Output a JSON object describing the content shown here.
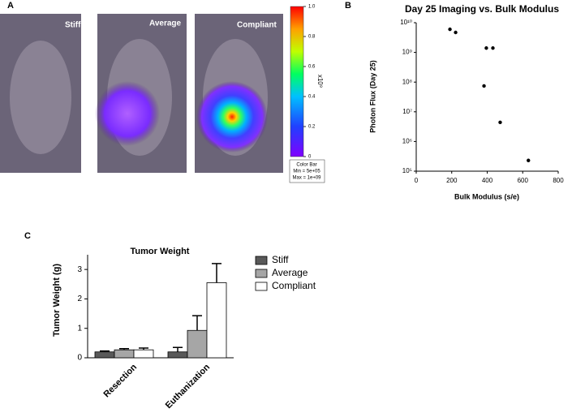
{
  "panel_labels": [
    "A",
    "B",
    "C"
  ],
  "images": {
    "labels": [
      "Stiff",
      "Average",
      "Compliant"
    ],
    "colorbar": {
      "ticks": [
        0,
        0.2,
        0.4,
        0.6,
        0.8,
        {
          "value": 1,
          "label": "1.0"
        }
      ],
      "unit_label": "x10⁹",
      "caption": [
        "Color Bar",
        "Min = 5e+05",
        "Max = 1e+09"
      ]
    }
  },
  "chart_data": [
    {
      "type": "scatter",
      "title": "Day 25 Imaging vs. Bulk Modulus",
      "x_label": "Bulk Modulus (s/e)",
      "y_label": "Photon Flux (Day 25)",
      "x": [
        190,
        222,
        382,
        395,
        432,
        473,
        632
      ],
      "values": [
        6000000000,
        4700000000,
        74000000,
        1400000000,
        1400000000,
        4400000,
        230000
      ],
      "color": "#000000",
      "xlim": [
        0,
        800
      ],
      "xticks": [
        0,
        200,
        400,
        600,
        800
      ],
      "yscale": "log",
      "ylim": [
        100000,
        10000000000
      ],
      "yticks": [
        {
          "value": 100000,
          "label": "10⁵"
        },
        {
          "value": 1000000,
          "label": "10⁶"
        },
        {
          "value": 10000000,
          "label": "10⁷"
        },
        {
          "value": 100000000,
          "label": "10⁸"
        },
        {
          "value": 1000000000,
          "label": "10⁹"
        },
        {
          "value": 10000000000,
          "label": "10¹⁰"
        }
      ]
    },
    {
      "type": "bar",
      "title": "Tumor Weight",
      "y_label": "Tumor Weight (g)",
      "categories": [
        "Resection",
        "Euthanization"
      ],
      "series": [
        {
          "name": "Stiff",
          "color": "#595959",
          "values": [
            0.2,
            0.2
          ],
          "errors": [
            0.03,
            0.15
          ]
        },
        {
          "name": "Average",
          "color": "#a6a6a6",
          "values": [
            0.27,
            0.93
          ],
          "errors": [
            0.04,
            0.5
          ]
        },
        {
          "name": "Compliant",
          "color": "#ffffff",
          "values": [
            0.27,
            2.55
          ],
          "errors": [
            0.06,
            0.65
          ]
        }
      ],
      "ylim": [
        0,
        3.5
      ],
      "yticks": [
        0,
        1,
        2,
        3
      ],
      "legend": "right"
    }
  ]
}
